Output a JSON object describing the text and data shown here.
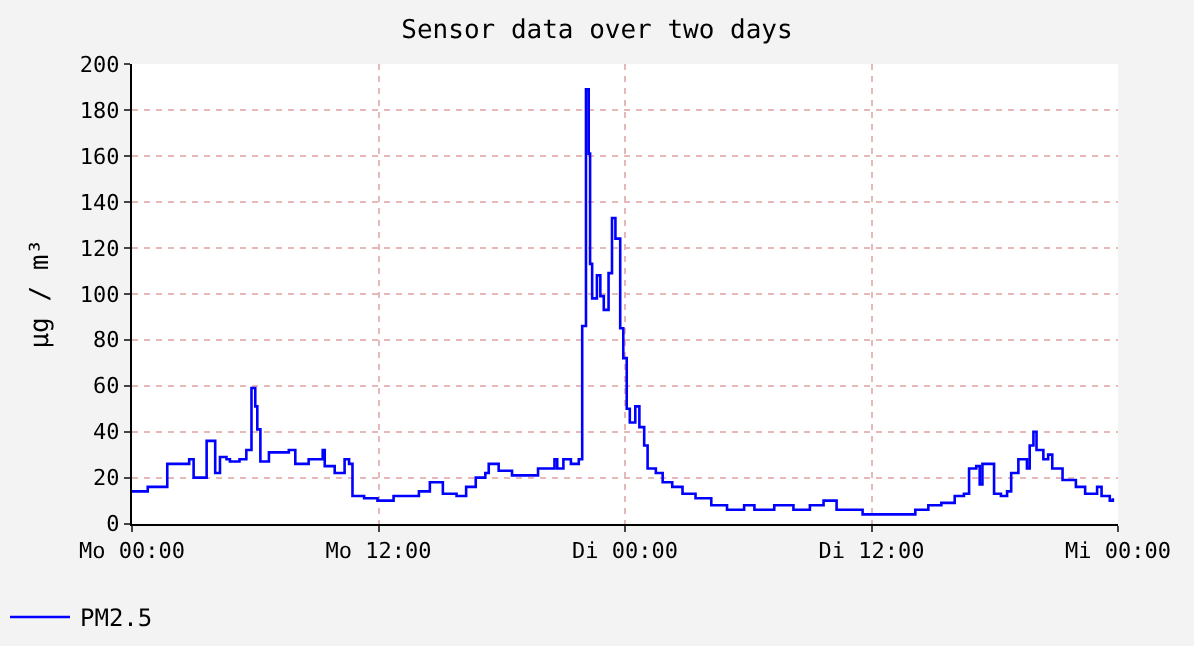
{
  "chart_data": {
    "type": "step",
    "title": "Sensor data over two days",
    "ylabel": "µg / m³",
    "x": [
      "--01-01T00:00",
      "--01-01T00:46",
      "--01-01T01:34",
      "--01-01T01:43",
      "--01-01T02:47",
      "--01-01T03:00",
      "--01-01T03:25",
      "--01-01T03:38",
      "--01-01T03:54",
      "--01-01T04:03",
      "--01-01T04:17",
      "--01-01T04:36",
      "--01-01T04:46",
      "--01-01T05:14",
      "--01-01T05:34",
      "--01-01T05:49",
      "--01-01T06:00",
      "--01-01T06:06",
      "--01-01T06:15",
      "--01-01T06:40",
      "--01-01T07:38",
      "--01-01T07:57",
      "--01-01T08:36",
      "--01-01T09:17",
      "--01-01T09:23",
      "--01-01T09:52",
      "--01-01T10:21",
      "--01-01T10:34",
      "--01-01T10:44",
      "--01-01T11:18",
      "--01-01T11:57",
      "--01-01T12:44",
      "--01-01T13:23",
      "--01-01T13:58",
      "--01-01T14:30",
      "--01-01T14:59",
      "--01-01T15:08",
      "--01-01T15:48",
      "--01-01T16:16",
      "--01-01T16:44",
      "--01-01T17:12",
      "--01-01T17:22",
      "--01-01T17:51",
      "--01-01T18:30",
      "--01-01T19:27",
      "--01-01T19:46",
      "--01-01T20:34",
      "--01-01T20:42",
      "--01-01T21:00",
      "--01-01T21:22",
      "--01-01T21:45",
      "--01-01T21:55",
      "--01-01T22:06",
      "--01-01T22:14",
      "--01-01T22:18",
      "--01-01T22:24",
      "--01-01T22:38",
      "--01-01T22:48",
      "--01-01T22:58",
      "--01-01T23:12",
      "--01-01T23:22",
      "--01-01T23:32",
      "--01-01T23:46",
      "--01-01T23:55",
      "--01-02T00:05",
      "--01-02T00:14",
      "--01-02T00:30",
      "--01-02T00:42",
      "--01-02T00:56",
      "--01-02T01:06",
      "--01-02T01:30",
      "--01-02T01:50",
      "--01-02T02:18",
      "--01-02T02:48",
      "--01-02T03:26",
      "--01-02T04:12",
      "--01-02T04:58",
      "--01-02T05:21",
      "--01-02T05:48",
      "--01-02T06:18",
      "--01-02T07:16",
      "--01-02T08:12",
      "--01-02T09:00",
      "--01-02T09:40",
      "--01-02T10:18",
      "--01-02T11:34",
      "--01-02T12:42",
      "--01-02T13:48",
      "--01-02T14:08",
      "--01-02T14:46",
      "--01-02T15:24",
      "--01-02T16:03",
      "--01-02T16:30",
      "--01-02T16:45",
      "--01-02T17:06",
      "--01-02T17:16",
      "--01-02T17:24",
      "--01-02T17:44",
      "--01-02T17:58",
      "--01-02T18:18",
      "--01-02T18:36",
      "--01-02T18:48",
      "--01-02T19:09",
      "--01-02T19:34",
      "--01-02T19:42",
      "--01-02T19:53",
      "--01-02T20:02",
      "--01-02T20:22",
      "--01-02T20:36",
      "--01-02T20:48",
      "--01-02T21:18",
      "--01-02T21:57",
      "--01-02T22:24",
      "--01-02T22:59",
      "--01-02T23:12",
      "--01-02T23:36",
      "--01-02T23:45"
    ],
    "series": [
      {
        "name": "PM2.5",
        "color": "#0000ff",
        "values": [
          14,
          16,
          16,
          26,
          28,
          20,
          20,
          36,
          36,
          22,
          29,
          28,
          27,
          28,
          32,
          59,
          51,
          41,
          27,
          31,
          32,
          26,
          28,
          32,
          25,
          22,
          28,
          26,
          12,
          11,
          10,
          12,
          12,
          14,
          18,
          18,
          13,
          12,
          16,
          20,
          22,
          26,
          23,
          21,
          21,
          24,
          28,
          24,
          28,
          26,
          28,
          86,
          189,
          161,
          113,
          98,
          108,
          99,
          93,
          109,
          133,
          124,
          85,
          72,
          50,
          44,
          51,
          42,
          34,
          24,
          22,
          18,
          16,
          13,
          11,
          8,
          6,
          6,
          8,
          6,
          8,
          6,
          8,
          10,
          6,
          4,
          4,
          4,
          6,
          8,
          9,
          12,
          13,
          24,
          25,
          17,
          26,
          26,
          13,
          12,
          14,
          22,
          28,
          24,
          34,
          40,
          32,
          28,
          30,
          24,
          19,
          16,
          13,
          16,
          12,
          10,
          11
        ]
      }
    ],
    "xlim": [
      "--01-01T00:00",
      "--01-03T00:00"
    ],
    "xticks": [
      {
        "value": "--01-01T00:00",
        "label": "Mo 00:00"
      },
      {
        "value": "--01-01T12:00",
        "label": "Mo 12:00"
      },
      {
        "value": "--01-02T00:00",
        "label": "Di 00:00"
      },
      {
        "value": "--01-02T12:00",
        "label": "Di 12:00"
      },
      {
        "value": "--01-03T00:00",
        "label": "Mi 00:00"
      }
    ],
    "ylim": [
      0,
      200
    ],
    "yticks": [
      0,
      20,
      40,
      60,
      80,
      100,
      120,
      140,
      160,
      180,
      200
    ],
    "grid": true,
    "legend": "bottom left"
  }
}
